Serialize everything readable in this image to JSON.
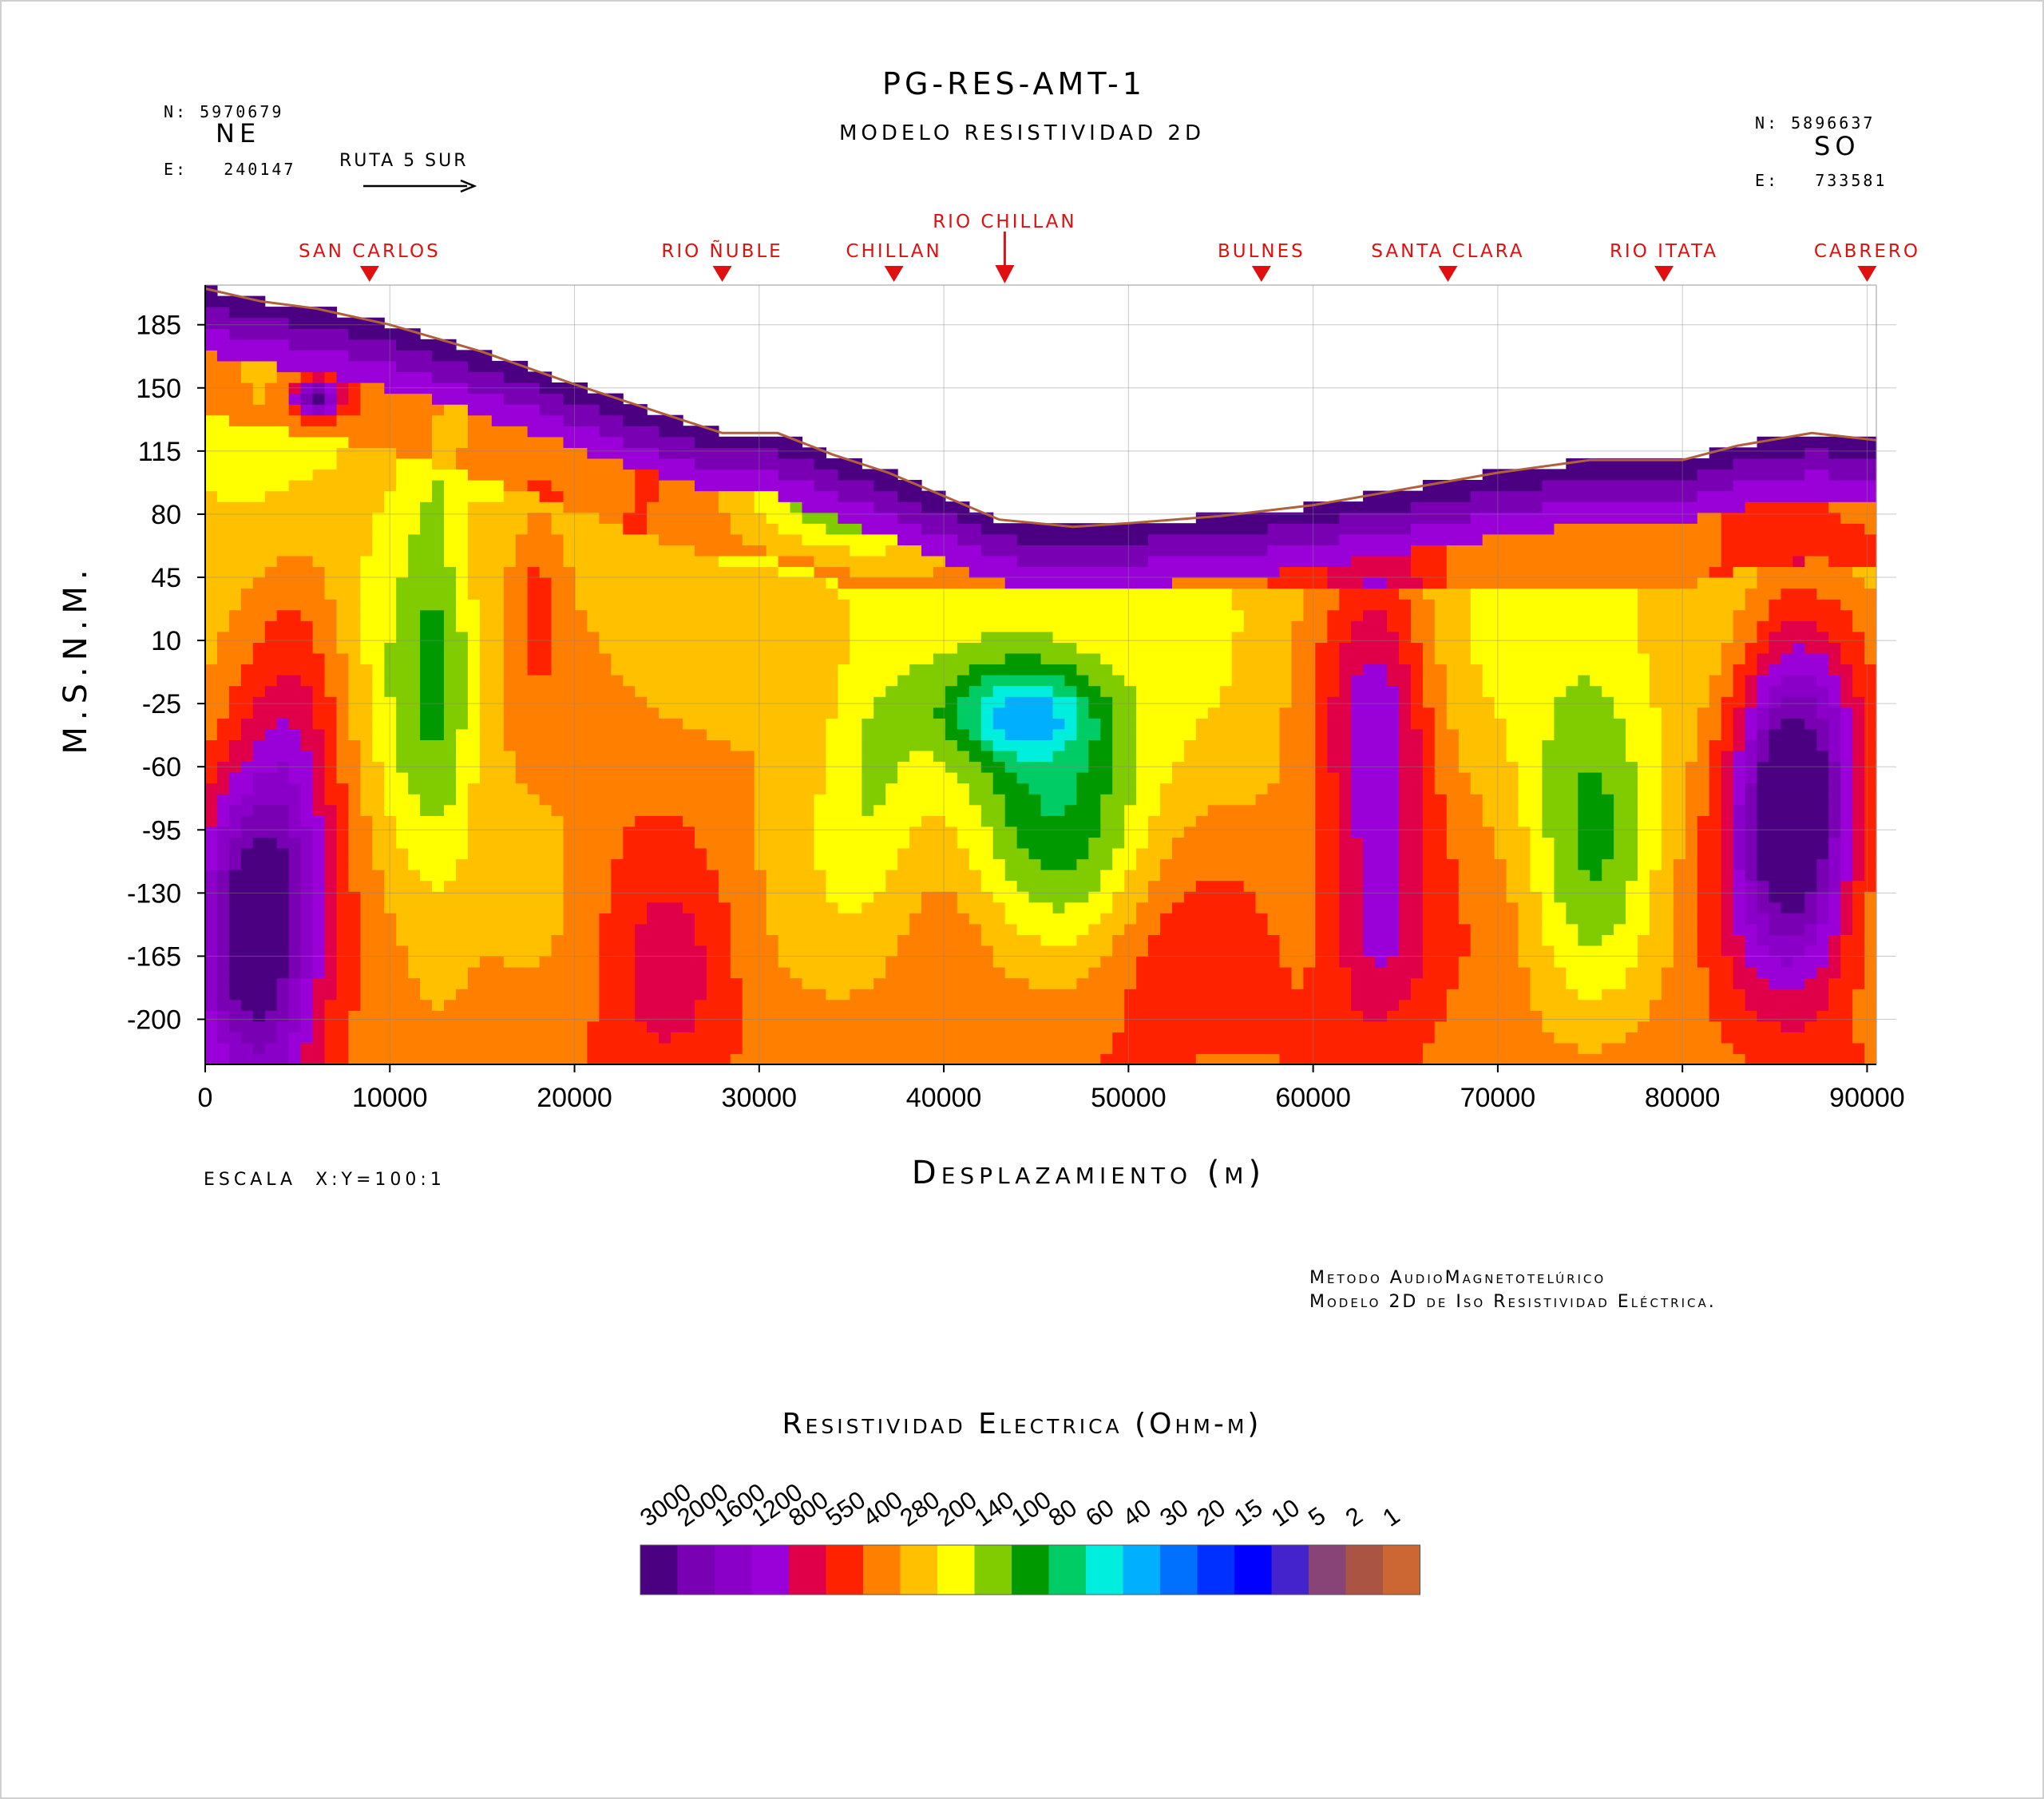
{
  "header": {
    "title": "PG-RES-AMT-1",
    "subtitle": "MODELO RESISTIVIDAD 2D",
    "left_coords": {
      "n": "N: 5970679",
      "e": "E:   240147"
    },
    "right_coords": {
      "n": "N: 5896637",
      "e": "E:   733581"
    },
    "left_direction": "NE",
    "right_direction": "SO",
    "route_label": "RUTA 5 SUR"
  },
  "notes": {
    "scale": "ESCALA  X:Y=100:1",
    "method_line1": "Metodo AudioMagnetotelúrico",
    "method_line2": "Modelo 2D de Iso Resistividad Eléctrica."
  },
  "chart_data": {
    "type": "heatmap",
    "title": "PG-RES-AMT-1",
    "subtitle": "MODELO RESISTIVIDAD 2D",
    "xlabel": "Desplazamiento (m)",
    "ylabel": "M.S.N.M.",
    "xlim": [
      0,
      90500
    ],
    "ylim": [
      -225,
      207
    ],
    "x_ticks": [
      0,
      10000,
      20000,
      30000,
      40000,
      50000,
      60000,
      70000,
      80000,
      90000
    ],
    "y_ticks": [
      185,
      150,
      115,
      80,
      45,
      10,
      -25,
      -60,
      -95,
      -130,
      -165,
      -200
    ],
    "grid": true,
    "locations": [
      {
        "name": "SAN CARLOS",
        "x": 8900
      },
      {
        "name": "RIO ÑUBLE",
        "x": 28000
      },
      {
        "name": "CHILLAN",
        "x": 37300
      },
      {
        "name": "RIO CHILLAN",
        "x": 43300
      },
      {
        "name": "BULNES",
        "x": 57200
      },
      {
        "name": "SANTA CLARA",
        "x": 67300
      },
      {
        "name": "RIO ITATA",
        "x": 79000
      },
      {
        "name": "CABRERO",
        "x": 90000
      }
    ],
    "topography": [
      [
        0,
        205
      ],
      [
        3000,
        198
      ],
      [
        6000,
        194
      ],
      [
        10000,
        185
      ],
      [
        15000,
        170
      ],
      [
        20000,
        152
      ],
      [
        25000,
        135
      ],
      [
        28000,
        125
      ],
      [
        31000,
        125
      ],
      [
        34000,
        113
      ],
      [
        37000,
        103
      ],
      [
        40000,
        90
      ],
      [
        43000,
        77
      ],
      [
        47000,
        73
      ],
      [
        50000,
        75
      ],
      [
        55000,
        79
      ],
      [
        60000,
        85
      ],
      [
        65000,
        94
      ],
      [
        70000,
        103
      ],
      [
        75000,
        110
      ],
      [
        80000,
        110
      ],
      [
        83000,
        118
      ],
      [
        87000,
        125
      ],
      [
        90500,
        121
      ]
    ],
    "legend": {
      "title": "Resistividad Electrica (Ohm-m)",
      "values": [
        "3000",
        "2000",
        "1600",
        "1200",
        "800",
        "550",
        "400",
        "280",
        "200",
        "140",
        "100",
        "80",
        "60",
        "40",
        "30",
        "20",
        "15",
        "10",
        "5",
        "2",
        "1"
      ],
      "colors": [
        "#4b0082",
        "#7a00b4",
        "#8a00c8",
        "#9a00d8",
        "#e0004a",
        "#ff2200",
        "#ff7f00",
        "#ffc000",
        "#ffff00",
        "#80cc00",
        "#009900",
        "#00cc66",
        "#00eedd",
        "#00b0ff",
        "#0070ff",
        "#0030ff",
        "#0000ff",
        "#4422cc",
        "#884477",
        "#aa5544",
        "#cc6633"
      ]
    }
  }
}
